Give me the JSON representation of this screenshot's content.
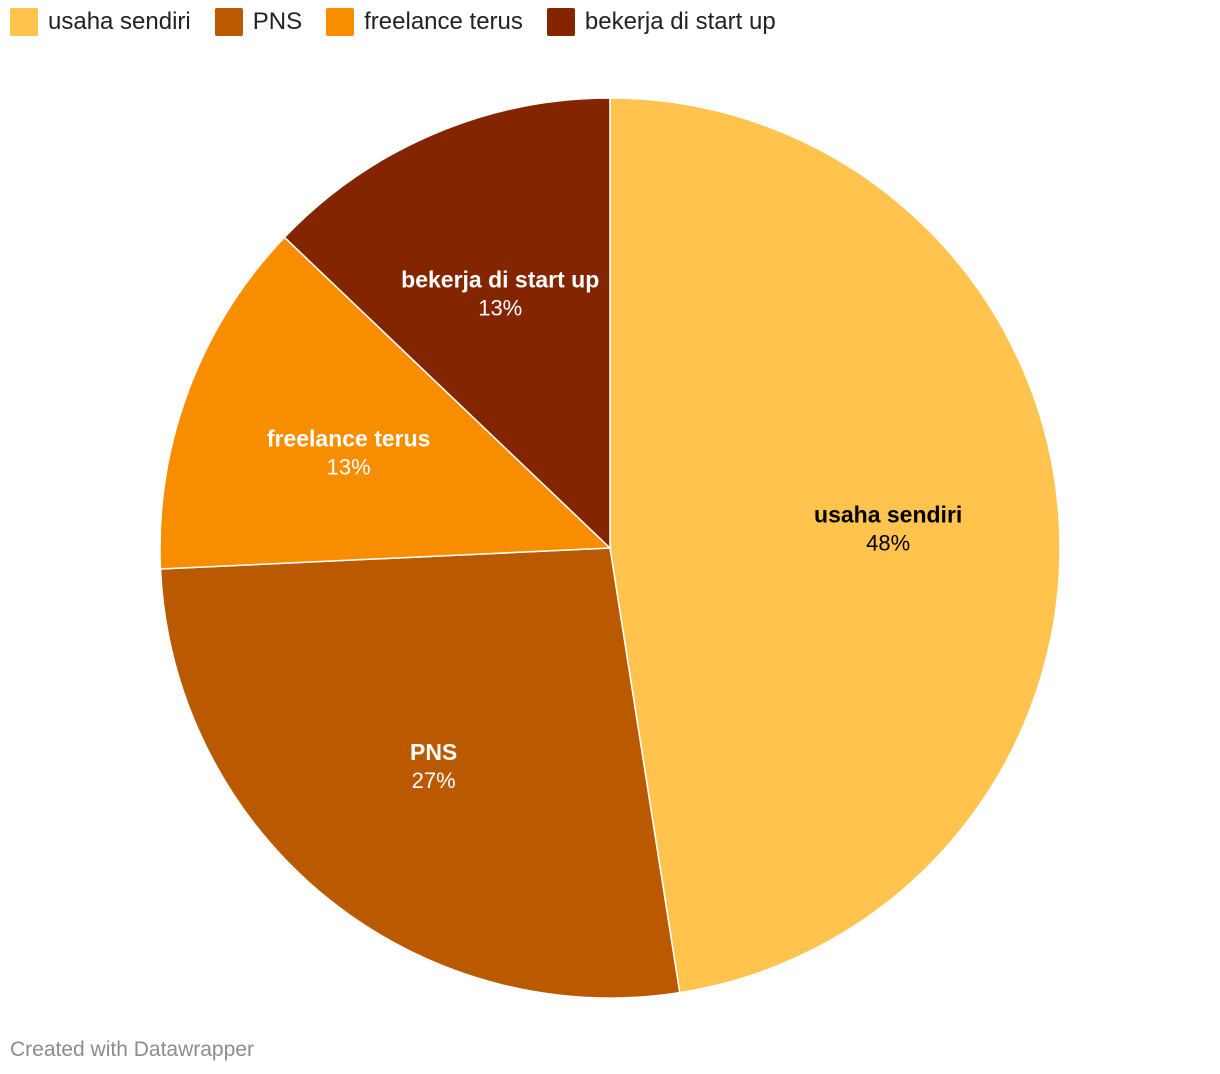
{
  "chart_data": {
    "type": "pie",
    "slices": [
      {
        "label": "usaha sendiri",
        "value": 48,
        "value_label": "48%",
        "color": "#ffc34e",
        "text_color": "#000000"
      },
      {
        "label": "PNS",
        "value": 27,
        "value_label": "27%",
        "color": "#bb5900",
        "text_color": "#ffffff"
      },
      {
        "label": "freelance terus",
        "value": 13,
        "value_label": "13%",
        "color": "#f98d00",
        "text_color": "#ffffff"
      },
      {
        "label": "bekerja di start up",
        "value": 13,
        "value_label": "13%",
        "color": "#822500",
        "text_color": "#ffffff"
      }
    ],
    "legend_position": "top-left",
    "start": "12 o'clock, clockwise"
  },
  "credit": "Created with Datawrapper"
}
